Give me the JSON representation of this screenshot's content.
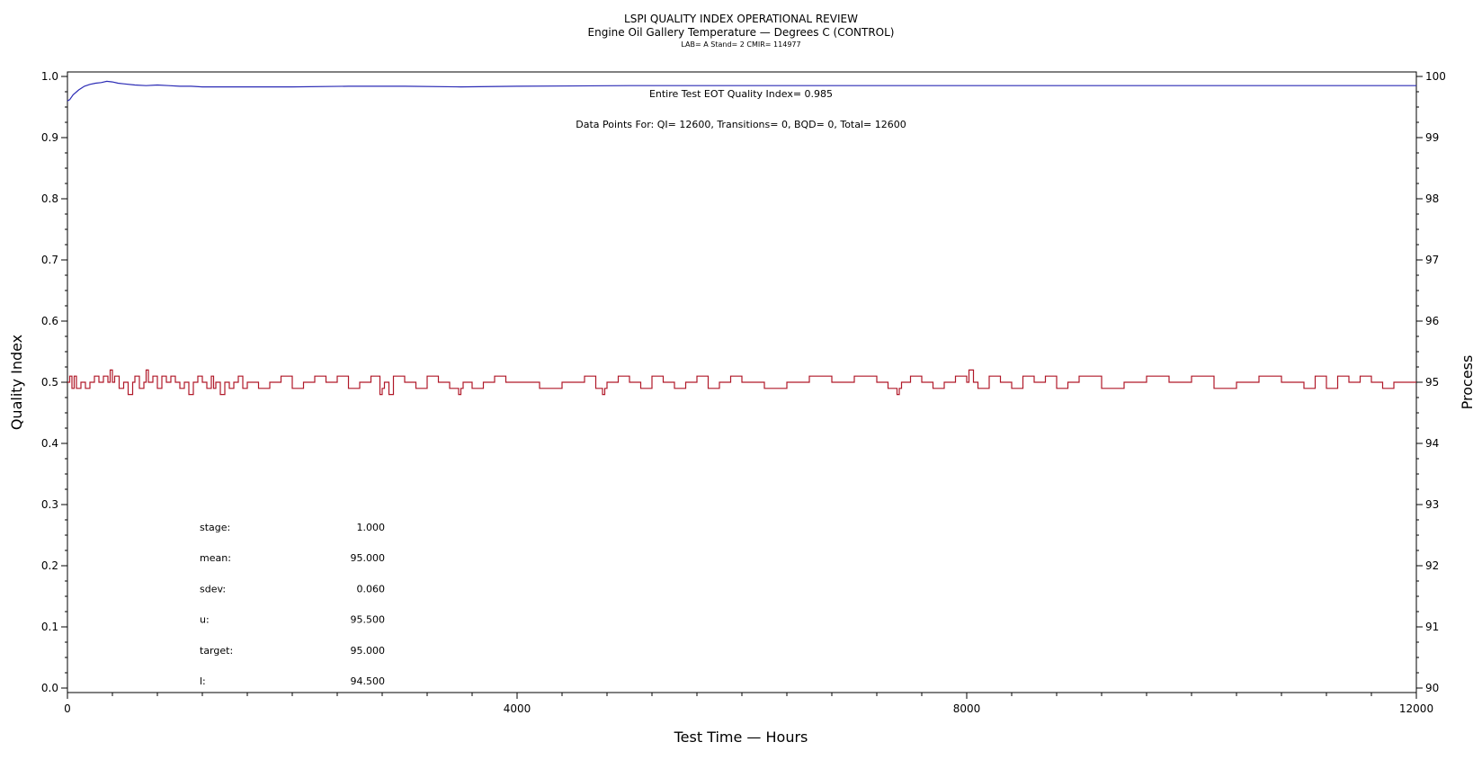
{
  "chart_data": {
    "type": "line",
    "title": "LSPI QUALITY INDEX OPERATIONAL REVIEW",
    "subtitle": "Engine Oil Gallery Temperature — Degrees C (CONTROL)",
    "subtitle2": "LAB= A Stand= 2 CMIR= 114977",
    "xlabel": "Test Time — Hours",
    "ylabel": "Quality Index",
    "y2label": "Process",
    "xlim": [
      0,
      12000
    ],
    "ylim": [
      0.0,
      1.0
    ],
    "y2lim": [
      90,
      100
    ],
    "x_ticks": [
      "0",
      "4000",
      "8000",
      "12000"
    ],
    "y_ticks": [
      "0.0",
      "0.1",
      "0.2",
      "0.3",
      "0.4",
      "0.5",
      "0.6",
      "0.7",
      "0.8",
      "0.9",
      "1.0"
    ],
    "y2_ticks": [
      "90",
      "91",
      "92",
      "93",
      "94",
      "95",
      "96",
      "97",
      "98",
      "99",
      "100"
    ],
    "annotations": {
      "quality_index": "Entire Test EOT Quality Index=   0.985",
      "data_points": "Data Points For: QI= 12600, Transitions=      0, BQD=      0, Total= 12600"
    },
    "stats": [
      {
        "label": "stage:",
        "value": "1.000"
      },
      {
        "label": "mean:",
        "value": "95.000"
      },
      {
        "label": "sdev:",
        "value": "0.060"
      },
      {
        "label": "u:",
        "value": "95.500"
      },
      {
        "label": "target:",
        "value": "95.000"
      },
      {
        "label": "l:",
        "value": "94.500"
      }
    ],
    "colors": {
      "quality_index": "#2b2bb5",
      "process": "#b01828"
    },
    "series": [
      {
        "axis": "left",
        "x": [
          0,
          20,
          50,
          100,
          150,
          200,
          250,
          300,
          350,
          400,
          450,
          500,
          600,
          700,
          800,
          900,
          1000,
          1100,
          1200,
          1500,
          2000,
          2500,
          3000,
          3500,
          4000,
          5000,
          6000,
          7000,
          8000,
          9000,
          10000,
          11000,
          12000
        ],
        "values": [
          0.96,
          0.962,
          0.97,
          0.978,
          0.984,
          0.987,
          0.989,
          0.99,
          0.992,
          0.991,
          0.989,
          0.988,
          0.986,
          0.985,
          0.986,
          0.985,
          0.984,
          0.984,
          0.983,
          0.983,
          0.983,
          0.984,
          0.984,
          0.983,
          0.984,
          0.985,
          0.985,
          0.985,
          0.985,
          0.985,
          0.985,
          0.985,
          0.985
        ]
      },
      {
        "axis": "right",
        "x": [
          0,
          20,
          40,
          60,
          80,
          120,
          160,
          200,
          240,
          280,
          320,
          360,
          380,
          400,
          420,
          460,
          500,
          540,
          580,
          600,
          640,
          680,
          700,
          720,
          760,
          800,
          840,
          880,
          920,
          960,
          1000,
          1040,
          1080,
          1120,
          1160,
          1200,
          1240,
          1280,
          1300,
          1320,
          1360,
          1400,
          1440,
          1480,
          1520,
          1560,
          1600,
          1700,
          1800,
          1900,
          2000,
          2100,
          2200,
          2300,
          2400,
          2500,
          2600,
          2700,
          2780,
          2800,
          2820,
          2860,
          2900,
          3000,
          3100,
          3200,
          3300,
          3400,
          3480,
          3500,
          3520,
          3600,
          3700,
          3800,
          3900,
          4000,
          4200,
          4400,
          4600,
          4700,
          4760,
          4780,
          4800,
          4900,
          5000,
          5100,
          5200,
          5300,
          5400,
          5500,
          5600,
          5700,
          5800,
          5900,
          6000,
          6200,
          6400,
          6600,
          6800,
          7000,
          7200,
          7300,
          7380,
          7400,
          7420,
          7500,
          7600,
          7700,
          7800,
          7900,
          8000,
          8020,
          8060,
          8100,
          8200,
          8300,
          8400,
          8500,
          8600,
          8700,
          8800,
          8900,
          9000,
          9200,
          9400,
          9600,
          9800,
          10000,
          10200,
          10400,
          10600,
          10800,
          11000,
          11100,
          11200,
          11300,
          11400,
          11500,
          11600,
          11700,
          11800,
          11900,
          12000
        ],
        "values": [
          95.0,
          95.1,
          94.9,
          95.1,
          94.9,
          95.0,
          94.9,
          95.0,
          95.1,
          95.0,
          95.1,
          95.0,
          95.2,
          95.0,
          95.1,
          94.9,
          95.0,
          94.8,
          95.0,
          95.1,
          94.9,
          95.0,
          95.2,
          95.0,
          95.1,
          94.9,
          95.1,
          95.0,
          95.1,
          95.0,
          94.9,
          95.0,
          94.8,
          95.0,
          95.1,
          95.0,
          94.9,
          95.1,
          94.9,
          95.0,
          94.8,
          95.0,
          94.9,
          95.0,
          95.1,
          94.9,
          95.0,
          94.9,
          95.0,
          95.1,
          94.9,
          95.0,
          95.1,
          95.0,
          95.1,
          94.9,
          95.0,
          95.1,
          94.8,
          94.9,
          95.0,
          94.8,
          95.1,
          95.0,
          94.9,
          95.1,
          95.0,
          94.9,
          94.8,
          94.9,
          95.0,
          94.9,
          95.0,
          95.1,
          95.0,
          95.0,
          94.9,
          95.0,
          95.1,
          94.9,
          94.8,
          94.9,
          95.0,
          95.1,
          95.0,
          94.9,
          95.1,
          95.0,
          94.9,
          95.0,
          95.1,
          94.9,
          95.0,
          95.1,
          95.0,
          94.9,
          95.0,
          95.1,
          95.0,
          95.1,
          95.0,
          94.9,
          94.8,
          94.9,
          95.0,
          95.1,
          95.0,
          94.9,
          95.0,
          95.1,
          95.0,
          95.2,
          95.0,
          94.9,
          95.1,
          95.0,
          94.9,
          95.1,
          95.0,
          95.1,
          94.9,
          95.0,
          95.1,
          94.9,
          95.0,
          95.1,
          95.0,
          95.1,
          94.9,
          95.0,
          95.1,
          95.0,
          94.9,
          95.1,
          94.9,
          95.1,
          95.0,
          95.1,
          95.0,
          94.9,
          95.0,
          95.0,
          95.0
        ]
      }
    ],
    "grid": false,
    "legend": "none"
  }
}
